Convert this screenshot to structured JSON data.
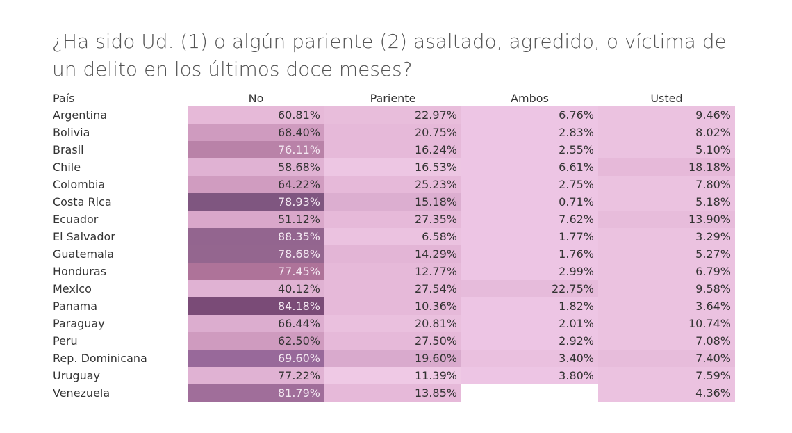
{
  "title": "¿Ha sido Ud. (1) o algún pariente (2) asaltado, agredido, o víctima de un delito en los últimos doce meses?",
  "chart_data": {
    "type": "heatmap",
    "title": "¿Ha sido Ud. (1) o algún pariente (2) asaltado, agredido, o víctima de un delito en los últimos doce meses?",
    "row_header": "País",
    "columns": [
      "No",
      "Pariente",
      "Ambos",
      "Usted"
    ],
    "rows": [
      {
        "country": "Argentina",
        "values": [
          "60.81%",
          "22.97%",
          "6.76%",
          "9.46%"
        ],
        "colors": [
          "#e6b9d8",
          "#e8bddb",
          "#edc5e4",
          "#ebc2e0"
        ],
        "light": [
          false,
          false,
          false,
          false
        ]
      },
      {
        "country": "Bolivia",
        "values": [
          "68.40%",
          "20.75%",
          "2.83%",
          "8.02%"
        ],
        "colors": [
          "#cf9bbf",
          "#e6b9d9",
          "#edc5e4",
          "#ebc2e0"
        ],
        "light": [
          false,
          false,
          false,
          false
        ]
      },
      {
        "country": "Brasil",
        "values": [
          "76.11%",
          "16.24%",
          "2.55%",
          "5.10%"
        ],
        "colors": [
          "#b982a8",
          "#e6b9d9",
          "#edc5e4",
          "#ebc2e0"
        ],
        "light": [
          true,
          false,
          false,
          false
        ]
      },
      {
        "country": "Chile",
        "values": [
          "58.68%",
          "16.53%",
          "6.61%",
          "18.18%"
        ],
        "colors": [
          "#e0b2d3",
          "#edc6e3",
          "#edc5e4",
          "#e6b9d9"
        ],
        "light": [
          false,
          false,
          false,
          false
        ]
      },
      {
        "country": "Colombia",
        "values": [
          "64.22%",
          "25.23%",
          "2.75%",
          "7.80%"
        ],
        "colors": [
          "#d09cc0",
          "#e6b9d9",
          "#edc5e4",
          "#ebc2e0"
        ],
        "light": [
          false,
          false,
          false,
          false
        ]
      },
      {
        "country": "Costa Rica",
        "values": [
          "78.93%",
          "15.18%",
          "0.71%",
          "5.18%"
        ],
        "colors": [
          "#7f5680",
          "#dcaed0",
          "#edc5e4",
          "#ebc2e0"
        ],
        "light": [
          true,
          false,
          false,
          false
        ]
      },
      {
        "country": "Ecuador",
        "values": [
          "51.12%",
          "27.35%",
          "7.62%",
          "13.90%"
        ],
        "colors": [
          "#d9a7ca",
          "#e6b9d9",
          "#edc5e4",
          "#e7bcdb"
        ],
        "light": [
          false,
          false,
          false,
          false
        ]
      },
      {
        "country": "El Salvador",
        "values": [
          "88.35%",
          "6.58%",
          "1.77%",
          "3.29%"
        ],
        "colors": [
          "#93658f",
          "#ebc2e0",
          "#edc5e4",
          "#ebc2e0"
        ],
        "light": [
          true,
          false,
          false,
          false
        ]
      },
      {
        "country": "Guatemala",
        "values": [
          "78.68%",
          "14.29%",
          "1.76%",
          "5.27%"
        ],
        "colors": [
          "#94668f",
          "#e3b5d6",
          "#edc5e4",
          "#ebc2e0"
        ],
        "light": [
          true,
          false,
          false,
          false
        ]
      },
      {
        "country": "Honduras",
        "values": [
          "77.45%",
          "12.77%",
          "2.99%",
          "6.79%"
        ],
        "colors": [
          "#ae7399",
          "#e6b9d9",
          "#edc5e4",
          "#ebc2e0"
        ],
        "light": [
          true,
          false,
          false,
          false
        ]
      },
      {
        "country": "Mexico",
        "values": [
          "40.12%",
          "27.54%",
          "22.75%",
          "9.58%"
        ],
        "colors": [
          "#e0b2d3",
          "#e6b9d9",
          "#e6bbdb",
          "#ebc2e0"
        ],
        "light": [
          false,
          false,
          false,
          false
        ]
      },
      {
        "country": "Panama",
        "values": [
          "84.18%",
          "10.36%",
          "1.82%",
          "3.64%"
        ],
        "colors": [
          "#7a4b77",
          "#e6b9d9",
          "#edc5e4",
          "#ebc2e0"
        ],
        "light": [
          true,
          false,
          false,
          false
        ]
      },
      {
        "country": "Paraguay",
        "values": [
          "66.44%",
          "20.81%",
          "2.01%",
          "10.74%"
        ],
        "colors": [
          "#dcadcf",
          "#eac0de",
          "#edc5e4",
          "#ebc2e0"
        ],
        "light": [
          false,
          false,
          false,
          false
        ]
      },
      {
        "country": "Peru",
        "values": [
          "62.50%",
          "27.50%",
          "2.92%",
          "7.08%"
        ],
        "colors": [
          "#cf9bbf",
          "#e6b9d9",
          "#edc5e4",
          "#ebc2e0"
        ],
        "light": [
          false,
          false,
          false,
          false
        ]
      },
      {
        "country": "Rep. Dominicana",
        "values": [
          "69.60%",
          "19.60%",
          "3.40%",
          "7.40%"
        ],
        "colors": [
          "#98699a",
          "#d9aacd",
          "#eac0df",
          "#e7bcdb"
        ],
        "light": [
          true,
          false,
          false,
          false
        ]
      },
      {
        "country": "Uruguay",
        "values": [
          "77.22%",
          "11.39%",
          "3.80%",
          "7.59%"
        ],
        "colors": [
          "#e0b2d3",
          "#efc9e5",
          "#edc5e4",
          "#ebc2e0"
        ],
        "light": [
          false,
          false,
          false,
          false
        ]
      },
      {
        "country": "Venezuela",
        "values": [
          "81.79%",
          "13.85%",
          "",
          "4.36%"
        ],
        "colors": [
          "#a06e9a",
          "#e6b9d9",
          "#ffffff",
          "#ebc2e0"
        ],
        "light": [
          true,
          false,
          false,
          false
        ]
      }
    ]
  }
}
